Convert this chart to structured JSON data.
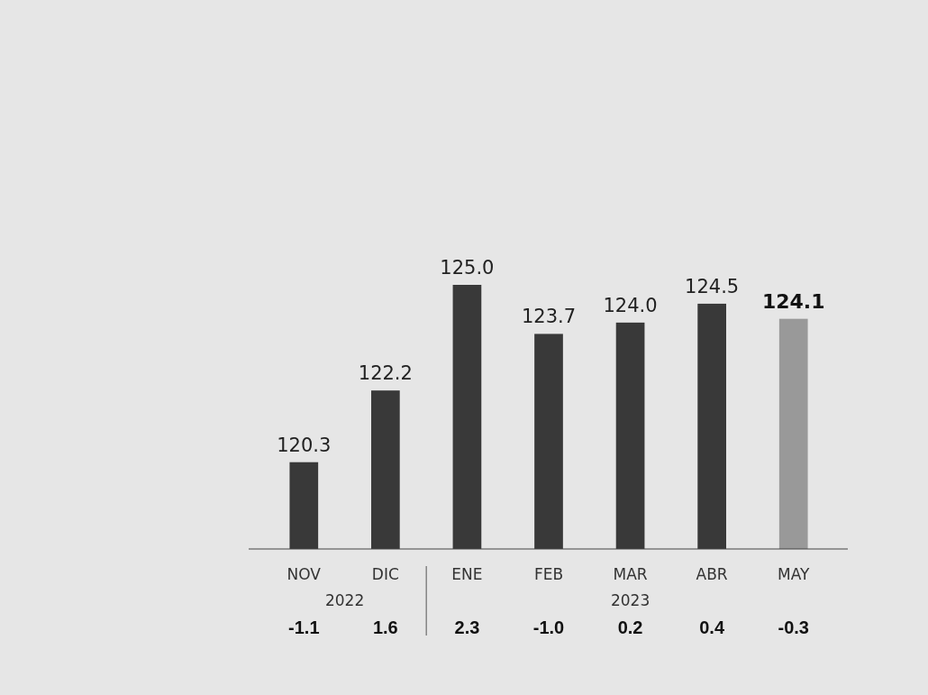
{
  "chart_data": {
    "type": "bar",
    "categories": [
      "NOV",
      "DIC",
      "ENE",
      "FEB",
      "MAR",
      "ABR",
      "MAY"
    ],
    "values": [
      120.3,
      122.2,
      125.0,
      123.7,
      124.0,
      124.5,
      124.1
    ],
    "value_labels": [
      "120.3",
      "122.2",
      "125.0",
      "123.7",
      "124.0",
      "124.5",
      "124.1"
    ],
    "colors": [
      "#393939",
      "#393939",
      "#393939",
      "#393939",
      "#393939",
      "#393939",
      "#999999"
    ],
    "ylim": [
      118,
      125
    ],
    "tick_labels": "x",
    "annotations": [
      "2022",
      "2023",
      "-1.1",
      "1.6",
      "2.3",
      "-1.0",
      "0.2",
      "0.4",
      "-0.3"
    ]
  }
}
